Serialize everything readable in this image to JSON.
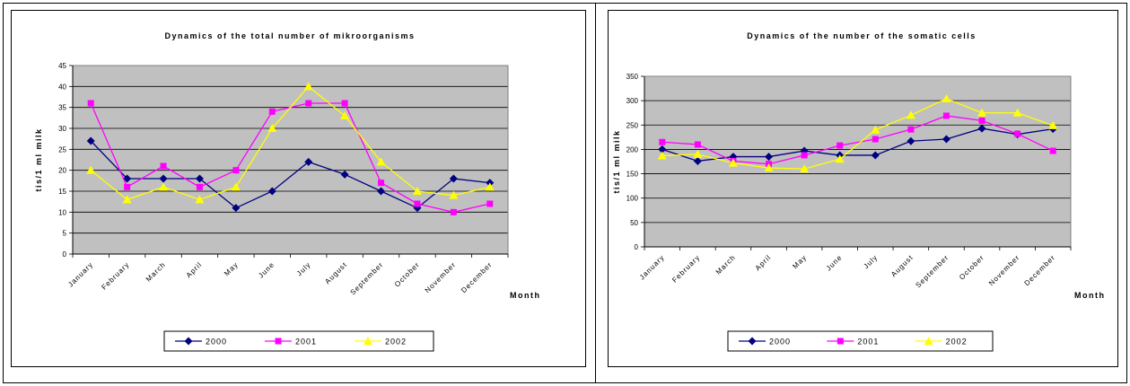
{
  "colors": {
    "plot_background": "#c0c0c0",
    "grid": "#000000",
    "series_2000": "#000080",
    "series_2001": "#ff00ff",
    "series_2002": "#ffff00"
  },
  "chart_data": [
    {
      "type": "line",
      "title": "Dynamics of the total number of mikroorganisms",
      "xlabel": "Month",
      "ylabel": "tis/1 ml milk",
      "ylim": [
        0,
        45
      ],
      "yticks": [
        0,
        5,
        10,
        15,
        20,
        25,
        30,
        35,
        40,
        45
      ],
      "grid": true,
      "legend_position": "bottom",
      "categories": [
        "January",
        "February",
        "March",
        "April",
        "May",
        "June",
        "July",
        "August",
        "September",
        "October",
        "November",
        "December"
      ],
      "series": [
        {
          "name": "2000",
          "marker": "diamond",
          "values": [
            27,
            18,
            18,
            18,
            11,
            15,
            22,
            19,
            15,
            11,
            18,
            17
          ]
        },
        {
          "name": "2001",
          "marker": "square",
          "values": [
            36,
            16,
            21,
            16,
            20,
            34,
            36,
            36,
            17,
            12,
            10,
            12
          ]
        },
        {
          "name": "2002",
          "marker": "triangle",
          "values": [
            20,
            13,
            16,
            13,
            16,
            30,
            40,
            33,
            22,
            15,
            14,
            16
          ]
        }
      ]
    },
    {
      "type": "line",
      "title": "Dynamics of the number of the somatic cells",
      "xlabel": "Month",
      "ylabel": "tis/1 ml milk",
      "ylim": [
        0,
        350
      ],
      "yticks": [
        0,
        50,
        100,
        150,
        200,
        250,
        300,
        350
      ],
      "grid": true,
      "legend_position": "bottom",
      "categories": [
        "January",
        "February",
        "March",
        "April",
        "May",
        "June",
        "July",
        "August",
        "September",
        "October",
        "November",
        "December"
      ],
      "series": [
        {
          "name": "2000",
          "marker": "diamond",
          "values": [
            200,
            176,
            185,
            185,
            197,
            188,
            188,
            217,
            221,
            243,
            231,
            242
          ]
        },
        {
          "name": "2001",
          "marker": "square",
          "values": [
            215,
            210,
            176,
            170,
            188,
            208,
            221,
            241,
            269,
            259,
            232,
            197
          ]
        },
        {
          "name": "2002",
          "marker": "triangle",
          "values": [
            187,
            190,
            172,
            162,
            160,
            180,
            240,
            270,
            304,
            275,
            275,
            249
          ]
        }
      ]
    }
  ]
}
